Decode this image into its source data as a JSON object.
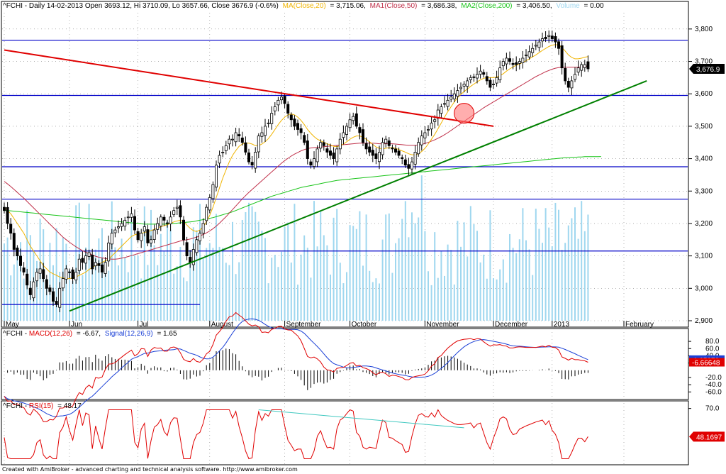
{
  "colors": {
    "up_candle": "#ffffff",
    "down_candle": "#000000",
    "ma20": "#f0b400",
    "ma50": "#c0304a",
    "ma200": "#19c419",
    "volume": "#9fd7ef",
    "hline": "#0000c8",
    "red_trend": "#e00000",
    "green_trend": "#008000",
    "macd": "#e00000",
    "signal": "#1a3fd6",
    "rsi": "#e00000",
    "rsi_div": "#40c8c0",
    "grid": "#808080"
  },
  "header": {
    "prefix": "^FCHI - Daily 14-02-2013 Open 3693.12, Hi 3710.09, Lo 3657.66, Close 3676.9 (-0.6%)",
    "ma_label": "MA(Close,20)",
    "ma_value": "= 3,715.06,",
    "ma1_label": "MA1(Close,50)",
    "ma1_value": "= 3,686.38,",
    "ma2_label": "MA2(Close,200)",
    "ma2_value": "= 3,406.50,",
    "vol_label": "Volume",
    "vol_value": "= 0.00"
  },
  "macd_header": {
    "prefix": "^FCHI - ",
    "macd_label": "MACD(12,26)",
    "macd_value": "= -6.67,",
    "signal_label": "Signal(12,26,9)",
    "signal_value": "= 1.65"
  },
  "rsi_header": {
    "prefix": "^FCHI - ",
    "rsi_label": "RSI(15)",
    "rsi_value": "= 48.17"
  },
  "footer": "Created with AmiBroker - advanced charting and technical analysis software. http://www.amibroker.com",
  "chart_data": {
    "type": "candlestick",
    "ylim": [
      2900,
      3850
    ],
    "y_ticks": [
      "3,800",
      "3,700",
      "3,600",
      "3,500",
      "3,400",
      "3,300",
      "3,200",
      "3,100",
      "3,000",
      "2,900"
    ],
    "last_value_label": "3,676.9",
    "months": [
      {
        "label": "May",
        "at": 0
      },
      {
        "label": "Jun",
        "at": 20
      },
      {
        "label": "Jul",
        "at": 41
      },
      {
        "label": "August",
        "at": 63
      },
      {
        "label": "September",
        "at": 86
      },
      {
        "label": "October",
        "at": 106
      },
      {
        "label": "November",
        "at": 129
      },
      {
        "label": "December",
        "at": 150
      },
      {
        "label": "2013",
        "at": 168
      },
      {
        "label": "February",
        "at": 190
      }
    ],
    "close": [
      3240,
      3200,
      3170,
      3120,
      3100,
      3070,
      3050,
      3010,
      2980,
      3020,
      3050,
      3060,
      3030,
      3000,
      2990,
      2960,
      2950,
      3000,
      3030,
      3060,
      3050,
      3030,
      3050,
      3090,
      3080,
      3100,
      3110,
      3060,
      3080,
      3070,
      3050,
      3080,
      3140,
      3170,
      3180,
      3190,
      3200,
      3210,
      3220,
      3230,
      3180,
      3150,
      3170,
      3190,
      3140,
      3150,
      3180,
      3200,
      3220,
      3210,
      3200,
      3220,
      3240,
      3250,
      3220,
      3150,
      3100,
      3080,
      3120,
      3150,
      3170,
      3200,
      3250,
      3280,
      3320,
      3380,
      3410,
      3420,
      3440,
      3460,
      3460,
      3480,
      3470,
      3450,
      3420,
      3390,
      3380,
      3420,
      3470,
      3480,
      3500,
      3510,
      3540,
      3560,
      3580,
      3590,
      3570,
      3540,
      3520,
      3500,
      3490,
      3480,
      3450,
      3400,
      3380,
      3400,
      3430,
      3450,
      3440,
      3420,
      3410,
      3400,
      3430,
      3460,
      3480,
      3500,
      3520,
      3530,
      3500,
      3480,
      3450,
      3430,
      3420,
      3410,
      3400,
      3420,
      3450,
      3460,
      3440,
      3430,
      3420,
      3410,
      3400,
      3380,
      3370,
      3390,
      3420,
      3450,
      3470,
      3480,
      3490,
      3510,
      3520,
      3550,
      3560,
      3570,
      3580,
      3590,
      3600,
      3610,
      3620,
      3630,
      3640,
      3650,
      3650,
      3660,
      3670,
      3660,
      3640,
      3620,
      3630,
      3650,
      3680,
      3700,
      3710,
      3700,
      3690,
      3690,
      3700,
      3710,
      3720,
      3730,
      3740,
      3750,
      3760,
      3770,
      3770,
      3780,
      3770,
      3760,
      3740,
      3680,
      3640,
      3620,
      3640,
      3660,
      3680,
      3690,
      3690,
      3677
    ],
    "ma20_values": [
      3250,
      3240,
      3230,
      3215,
      3200,
      3185,
      3170,
      3150,
      3130,
      3115,
      3100,
      3085,
      3070,
      3060,
      3050,
      3045,
      3040,
      3035,
      3032,
      3030,
      3030,
      3032,
      3035,
      3040,
      3045,
      3050,
      3058,
      3065,
      3070,
      3075,
      3080,
      3085,
      3090,
      3100,
      3110,
      3120,
      3130,
      3140,
      3150,
      3160,
      3165,
      3168,
      3170,
      3172,
      3175,
      3178,
      3182,
      3186,
      3190,
      3193,
      3196,
      3200,
      3205,
      3208,
      3210,
      3205,
      3195,
      3185,
      3178,
      3175,
      3180,
      3190,
      3205,
      3225,
      3250,
      3280,
      3310,
      3340,
      3365,
      3390,
      3410,
      3425,
      3438,
      3445,
      3448,
      3448,
      3445,
      3440,
      3440,
      3445,
      3452,
      3462,
      3475,
      3490,
      3505,
      3518,
      3528,
      3535,
      3538,
      3535,
      3528,
      3518,
      3505,
      3490,
      3478,
      3468,
      3460,
      3455,
      3450,
      3446,
      3442,
      3438,
      3437,
      3440,
      3445,
      3452,
      3460,
      3466,
      3470,
      3470,
      3466,
      3460,
      3452,
      3444,
      3436,
      3432,
      3430,
      3432,
      3434,
      3434,
      3432,
      3428,
      3424,
      3420,
      3415,
      3412,
      3412,
      3415,
      3422,
      3432,
      3445,
      3460,
      3475,
      3492,
      3510,
      3528,
      3545,
      3560,
      3575,
      3588,
      3598,
      3607,
      3615,
      3623,
      3630,
      3637,
      3643,
      3648,
      3650,
      3650,
      3650,
      3652,
      3656,
      3662,
      3670,
      3677,
      3683,
      3688,
      3692,
      3697,
      3702,
      3708,
      3714,
      3720,
      3727,
      3734,
      3740,
      3746,
      3750,
      3752,
      3750,
      3743,
      3732,
      3720,
      3712,
      3708,
      3708,
      3710,
      3713,
      3715
    ],
    "ma50_values": [
      3330,
      3322,
      3314,
      3305,
      3296,
      3287,
      3278,
      3268,
      3258,
      3248,
      3238,
      3228,
      3218,
      3208,
      3198,
      3188,
      3178,
      3168,
      3158,
      3150,
      3142,
      3135,
      3128,
      3122,
      3116,
      3111,
      3107,
      3103,
      3099,
      3096,
      3094,
      3092,
      3091,
      3090,
      3090,
      3091,
      3093,
      3095,
      3098,
      3101,
      3104,
      3107,
      3110,
      3113,
      3116,
      3119,
      3122,
      3125,
      3128,
      3131,
      3134,
      3137,
      3140,
      3143,
      3146,
      3148,
      3150,
      3152,
      3155,
      3158,
      3162,
      3166,
      3171,
      3177,
      3184,
      3192,
      3201,
      3211,
      3221,
      3232,
      3243,
      3254,
      3265,
      3276,
      3286,
      3296,
      3305,
      3314,
      3323,
      3332,
      3341,
      3350,
      3359,
      3368,
      3377,
      3386,
      3394,
      3401,
      3408,
      3414,
      3419,
      3424,
      3428,
      3431,
      3433,
      3434,
      3435,
      3436,
      3437,
      3438,
      3439,
      3440,
      3441,
      3442,
      3443,
      3444,
      3445,
      3446,
      3447,
      3448,
      3448,
      3448,
      3448,
      3448,
      3447,
      3446,
      3446,
      3446,
      3446,
      3446,
      3445,
      3444,
      3443,
      3442,
      3441,
      3441,
      3441,
      3442,
      3444,
      3447,
      3450,
      3454,
      3458,
      3463,
      3468,
      3474,
      3480,
      3487,
      3494,
      3501,
      3508,
      3515,
      3522,
      3529,
      3536,
      3543,
      3550,
      3557,
      3563,
      3569,
      3575,
      3581,
      3587,
      3593,
      3599,
      3605,
      3611,
      3617,
      3623,
      3629,
      3635,
      3641,
      3647,
      3653,
      3658,
      3663,
      3668,
      3672,
      3676,
      3679,
      3681,
      3682,
      3682,
      3682,
      3682,
      3682,
      3682,
      3683,
      3684,
      3686
    ],
    "ma200_values": [
      3240,
      3240,
      3239,
      3238,
      3237,
      3236,
      3235,
      3234,
      3233,
      3232,
      3231,
      3230,
      3229,
      3228,
      3227,
      3226,
      3225,
      3224,
      3223,
      3222,
      3221,
      3220,
      3219,
      3218,
      3217,
      3216,
      3215,
      3214,
      3213,
      3212,
      3211,
      3210,
      3209,
      3208,
      3207,
      3206,
      3205,
      3204,
      3203,
      3202,
      3201,
      3200,
      3199,
      3198,
      3198,
      3198,
      3198,
      3198,
      3198,
      3198,
      3198,
      3199,
      3200,
      3201,
      3202,
      3203,
      3204,
      3205,
      3206,
      3208,
      3210,
      3212,
      3214,
      3216,
      3218,
      3221,
      3224,
      3227,
      3230,
      3233,
      3236,
      3240,
      3244,
      3248,
      3252,
      3256,
      3260,
      3264,
      3268,
      3272,
      3276,
      3280,
      3284,
      3287,
      3290,
      3293,
      3296,
      3299,
      3302,
      3305,
      3308,
      3311,
      3313,
      3315,
      3317,
      3319,
      3321,
      3323,
      3325,
      3327,
      3329,
      3331,
      3333,
      3334,
      3335,
      3336,
      3337,
      3338,
      3339,
      3340,
      3341,
      3342,
      3343,
      3344,
      3345,
      3346,
      3347,
      3348,
      3349,
      3350,
      3351,
      3352,
      3353,
      3354,
      3355,
      3356,
      3357,
      3358,
      3359,
      3360,
      3361,
      3362,
      3363,
      3364,
      3365,
      3366,
      3367,
      3368,
      3369,
      3370,
      3371,
      3372,
      3373,
      3374,
      3375,
      3376,
      3377,
      3378,
      3379,
      3380,
      3381,
      3382,
      3383,
      3384,
      3385,
      3386,
      3387,
      3388,
      3389,
      3390,
      3391,
      3392,
      3393,
      3394,
      3395,
      3396,
      3397,
      3398,
      3399,
      3400,
      3401,
      3402,
      3403,
      3403,
      3404,
      3404,
      3405,
      3405,
      3406,
      3406,
      3406,
      3406,
      3406,
      3406.5
    ],
    "horizontal_levels": [
      3765,
      3595,
      3375,
      3275,
      3115
    ],
    "short_level": {
      "y": 2950,
      "x_end": 60
    },
    "red_trendline": [
      {
        "x": 0,
        "y": 3735
      },
      {
        "x": 150,
        "y": 3500
      }
    ],
    "green_trendline": [
      {
        "x": 20,
        "y": 2930
      },
      {
        "x": 197,
        "y": 3640
      }
    ],
    "marked_zone": {
      "x": 141,
      "y": 3540
    },
    "macd_axis": {
      "ylim": [
        -75,
        90
      ],
      "ticks": [
        "80.0",
        "60.0",
        "40.0",
        "20.0",
        "-20.0",
        "-40.0",
        "-60.0"
      ]
    },
    "macd_value_label": "1.65279",
    "macd_last_label": "-6.66648",
    "rsi_axis": {
      "ylim": [
        28,
        72
      ],
      "ticks": [
        "70.0"
      ]
    },
    "rsi_value_label": "48.1697"
  }
}
